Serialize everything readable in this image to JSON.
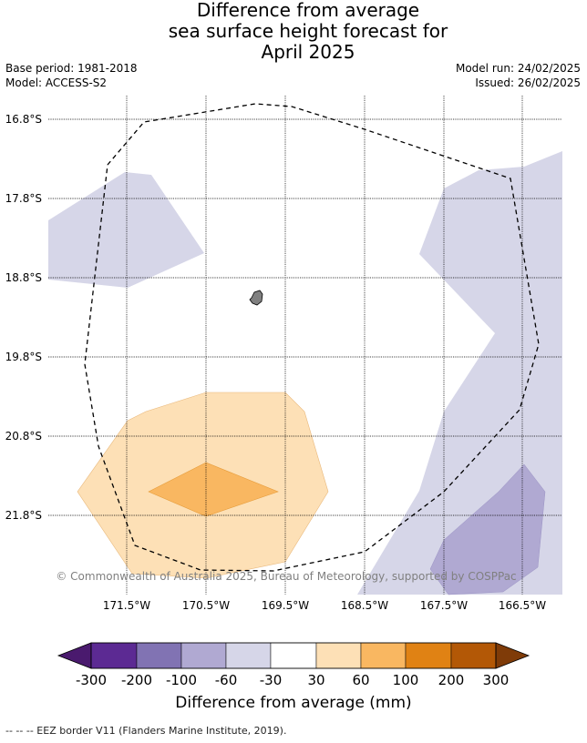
{
  "title": {
    "line1": "Difference from average",
    "line2": "sea surface height forecast for",
    "line3": "April 2025"
  },
  "meta": {
    "base_period": "Base period: 1981-2018",
    "model": "Model: ACCESS-S2",
    "model_run": "Model run: 24/02/2025",
    "issued": "Issued: 26/02/2025"
  },
  "map": {
    "lat_labels": [
      "16.8°S",
      "17.8°S",
      "18.8°S",
      "19.8°S",
      "20.8°S",
      "21.8°S"
    ],
    "lon_labels": [
      "171.5°W",
      "170.5°W",
      "169.5°W",
      "168.5°W",
      "167.5°W",
      "166.5°W"
    ],
    "copyright": "© Commonwealth of Australia 2025, Bureau of Meteorology, supported by COSPPac",
    "fill_colors": {
      "light_purple": "#d6d6e8",
      "mid_purple": "#b0a9d2",
      "light_orange": "#fde0b6",
      "mid_orange": "#f9b761",
      "island": "#808080"
    }
  },
  "colorbar": {
    "tick_labels": [
      "-300",
      "-200",
      "-100",
      "-60",
      "-30",
      "30",
      "60",
      "100",
      "200",
      "300"
    ],
    "colors": [
      "#4a1a6e",
      "#5c2a93",
      "#8173b3",
      "#b0a9d2",
      "#d6d6e8",
      "#ffffff",
      "#fde0b6",
      "#f9b761",
      "#e08214",
      "#b35806",
      "#7f3b08"
    ],
    "title": "Difference from average (mm)"
  },
  "footer": {
    "eez_legend": "-- -- -- EEZ border V11 (Flanders Marine Institute, 2019)."
  }
}
